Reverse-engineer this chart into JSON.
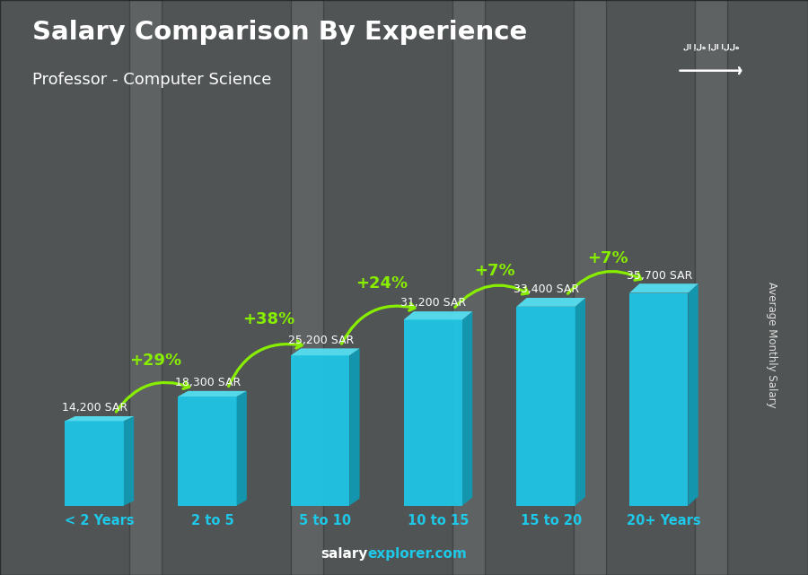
{
  "title": "Salary Comparison By Experience",
  "subtitle": "Professor - Computer Science",
  "categories": [
    "< 2 Years",
    "2 to 5",
    "5 to 10",
    "10 to 15",
    "15 to 20",
    "20+ Years"
  ],
  "values": [
    14200,
    18300,
    25200,
    31200,
    33400,
    35700
  ],
  "labels": [
    "14,200 SAR",
    "18,300 SAR",
    "25,200 SAR",
    "31,200 SAR",
    "33,400 SAR",
    "35,700 SAR"
  ],
  "pct_labels": [
    "+29%",
    "+38%",
    "+24%",
    "+7%",
    "+7%"
  ],
  "bar_color_face": "#1EC8E8",
  "bar_color_side": "#0E9BB5",
  "bar_color_top": "#55DDEF",
  "ylabel": "Average Monthly Salary",
  "background_color": "#6a7070",
  "title_color": "#FFFFFF",
  "subtitle_color": "#FFFFFF",
  "label_color": "#FFFFFF",
  "pct_color": "#88EE00",
  "xlabel_color": "#1EC8E8",
  "footer_bold_color": "#FFFFFF",
  "footer_light_color": "#1EC8E8",
  "flag_color": "#4CAF10",
  "ylabel_color": "#DDDDDD"
}
